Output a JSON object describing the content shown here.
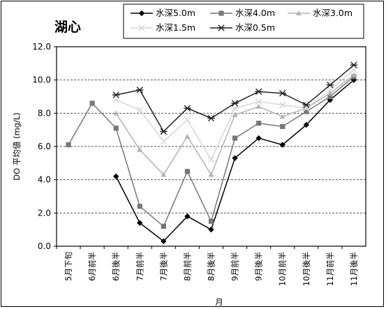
{
  "chart_data": {
    "type": "line",
    "title": "湖心",
    "xlabel": "月",
    "ylabel": "DO 平均値 (mg/L)",
    "ylim": [
      0,
      12
    ],
    "yticks": [
      "0.0",
      "2.0",
      "4.0",
      "6.0",
      "8.0",
      "10.0",
      "12.0"
    ],
    "grid": true,
    "legend_position": "top-right",
    "categories": [
      "5月下旬",
      "6月前半",
      "6月後半",
      "7月前半",
      "7月後半",
      "8月前半",
      "8月後半",
      "9月前半",
      "9月後半",
      "10月前半",
      "10月後半",
      "11月前半",
      "11月後半"
    ],
    "series": [
      {
        "name": "水深5.0m",
        "color": "#000000",
        "marker": "diamond",
        "values": [
          null,
          null,
          4.2,
          1.4,
          0.3,
          1.8,
          1.0,
          5.3,
          6.5,
          6.1,
          7.3,
          8.8,
          10.0
        ]
      },
      {
        "name": "水深4.0m",
        "color": "#777777",
        "marker": "square",
        "values": [
          6.1,
          8.6,
          7.1,
          2.4,
          1.2,
          4.5,
          1.5,
          6.5,
          7.4,
          7.2,
          8.1,
          9.0,
          10.2
        ]
      },
      {
        "name": "水深3.0m",
        "color": "#b3b3b3",
        "marker": "triangle",
        "values": [
          null,
          null,
          8.0,
          5.8,
          4.3,
          6.6,
          4.3,
          7.9,
          8.4,
          7.8,
          8.3,
          9.2,
          10.3
        ]
      },
      {
        "name": "水深1.5m",
        "color": "#d6d6d6",
        "marker": "x",
        "values": [
          null,
          null,
          8.8,
          8.2,
          6.3,
          7.6,
          5.2,
          8.3,
          8.7,
          8.5,
          8.3,
          9.4,
          10.6
        ]
      },
      {
        "name": "水深0.5m",
        "color": "#222222",
        "marker": "star",
        "values": [
          null,
          null,
          9.1,
          9.4,
          6.9,
          8.3,
          7.7,
          8.6,
          9.3,
          9.2,
          8.5,
          9.7,
          10.9
        ]
      }
    ]
  }
}
